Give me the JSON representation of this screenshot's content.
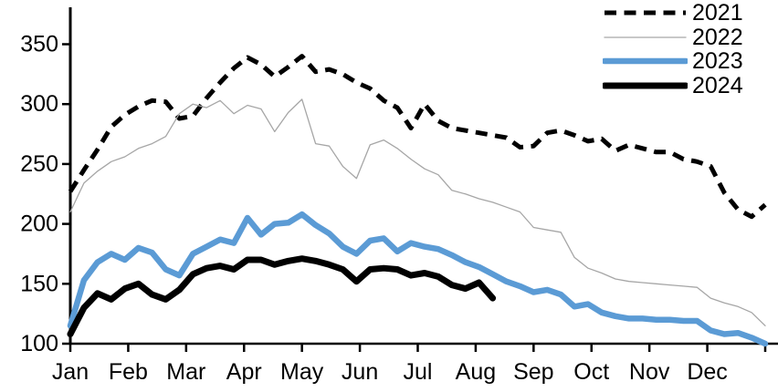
{
  "chart_data": {
    "type": "line",
    "title": "",
    "xlabel": "",
    "ylabel": "",
    "x_description": "weekly observations across one calendar year (Jan-Dec)",
    "weeks_total": 52,
    "grid": false,
    "legend_position": "top-right",
    "background_color": "#ffffff",
    "axis_color": "#000000",
    "x_axis": {
      "tick_labels": [
        "Jan",
        "Feb",
        "Mar",
        "Apr",
        "May",
        "Jun",
        "Jul",
        "Aug",
        "Sep",
        "Oct",
        "Nov",
        "Dec"
      ],
      "tick_count_including_right_edge": 13
    },
    "y_axis": {
      "min": 100,
      "max": 350,
      "ticks": [
        100,
        150,
        200,
        250,
        300,
        350
      ],
      "tick_labels": [
        "100",
        "150",
        "200",
        "250",
        "300",
        "350"
      ]
    },
    "ylim": [
      100,
      350
    ],
    "series": [
      {
        "name": "2021",
        "color": "#000000",
        "style": "dashed",
        "width": 5,
        "values": [
          227,
          245,
          262,
          281,
          291,
          298,
          303,
          302,
          288,
          290,
          305,
          318,
          330,
          339,
          333,
          323,
          331,
          340,
          327,
          329,
          325,
          318,
          313,
          303,
          297,
          280,
          300,
          286,
          280,
          278,
          276,
          274,
          272,
          264,
          265,
          276,
          278,
          274,
          269,
          271,
          261,
          266,
          263,
          260,
          260,
          254,
          252,
          248,
          226,
          212,
          206,
          216
        ]
      },
      {
        "name": "2022",
        "color": "#a6a6a6",
        "style": "solid",
        "width": 1.3,
        "values": [
          210,
          234,
          244,
          252,
          256,
          263,
          267,
          273,
          292,
          300,
          297,
          303,
          292,
          299,
          296,
          277,
          293,
          304,
          267,
          265,
          248,
          238,
          266,
          270,
          263,
          254,
          246,
          241,
          228,
          225,
          221,
          218,
          214,
          210,
          197,
          195,
          193,
          172,
          163,
          159,
          154,
          152,
          151,
          150,
          149,
          148,
          147,
          138,
          134,
          131,
          126,
          115
        ]
      },
      {
        "name": "2023",
        "color": "#5b9bd5",
        "style": "solid",
        "width": 6.5,
        "values": [
          115,
          153,
          168,
          175,
          170,
          180,
          176,
          162,
          157,
          175,
          181,
          187,
          184,
          205,
          191,
          200,
          201,
          208,
          199,
          192,
          181,
          175,
          186,
          188,
          177,
          184,
          181,
          179,
          174,
          168,
          164,
          158,
          152,
          148,
          143,
          145,
          141,
          131,
          133,
          126,
          123,
          121,
          121,
          120,
          120,
          119,
          119,
          111,
          108,
          109,
          105,
          100
        ]
      },
      {
        "name": "2024",
        "color": "#000000",
        "style": "solid",
        "width": 7,
        "values": [
          108,
          130,
          142,
          137,
          146,
          150,
          141,
          137,
          145,
          158,
          163,
          165,
          162,
          170,
          170,
          166,
          169,
          171,
          169,
          166,
          162,
          152,
          162,
          163,
          162,
          157,
          159,
          156,
          149,
          146,
          151,
          138
        ]
      }
    ]
  }
}
